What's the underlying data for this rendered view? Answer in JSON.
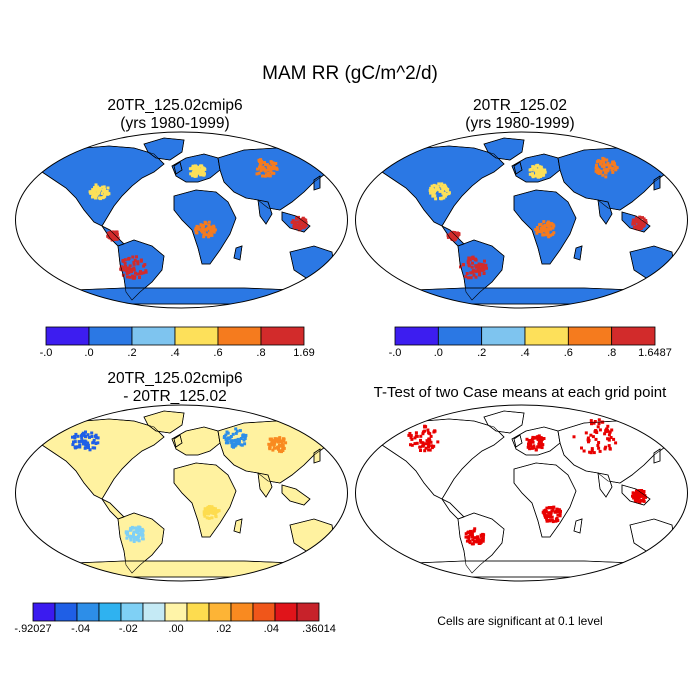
{
  "page_title": "MAM RR (gC/m^2/d)",
  "panels": [
    {
      "title_line1": "20TR_125.02cmip6",
      "title_line2": "(yrs 1980-1999)"
    },
    {
      "title_line1": "20TR_125.02",
      "title_line2": "(yrs 1980-1999)"
    },
    {
      "title_line1": "20TR_125.02cmip6",
      "title_line2": "- 20TR_125.02"
    },
    {
      "title_line1": "T-Test of two Case means at each grid point",
      "title_line2": ""
    }
  ],
  "colorbars": [
    {
      "labels": [
        "-.0",
        ".0",
        ".2",
        ".4",
        ".6",
        ".8",
        "1.69"
      ],
      "colors": [
        "#3d1df0",
        "#2b78e4",
        "#7ec4ef",
        "#fde05a",
        "#f57b1e",
        "#d22b2b"
      ]
    },
    {
      "labels": [
        "-.0",
        ".0",
        ".2",
        ".4",
        ".6",
        ".8",
        "1.6487"
      ],
      "colors": [
        "#3d1df0",
        "#2b78e4",
        "#7ec4ef",
        "#fde05a",
        "#f57b1e",
        "#d22b2b"
      ]
    },
    {
      "labels": [
        "-.92027",
        "-.04",
        "-.02",
        ".00",
        ".02",
        ".04",
        ".36014"
      ],
      "colors": [
        "#3b1bf0",
        "#1f5fe6",
        "#2d8ee8",
        "#2fb2f0",
        "#7fd0f5",
        "#c5eaf5",
        "#fff4a8",
        "#fddc4f",
        "#fdb436",
        "#f98a20",
        "#f0561a",
        "#e0141a",
        "#c7222a"
      ]
    }
  ],
  "ttest_note": "Cells are significant at 0.1 level",
  "colors": {
    "ocean": "#ffffff",
    "land_low": "#2b78e4",
    "land_high": "#d22b2b",
    "diff_base": "#fff2a0",
    "significant": "#e80000"
  }
}
